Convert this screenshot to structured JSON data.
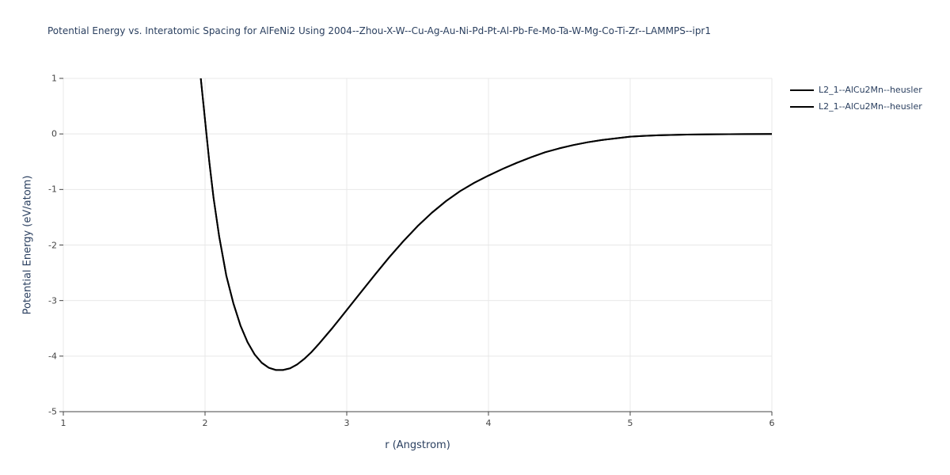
{
  "colors": {
    "line": "#000000",
    "grid": "#e8e8e8",
    "axis": "#444444",
    "text": "#2a3f5f",
    "tick_text": "#444444",
    "background": "#ffffff"
  },
  "chart_data": {
    "type": "line",
    "title": "Potential Energy vs. Interatomic Spacing for AlFeNi2 Using 2004--Zhou-X-W--Cu-Ag-Au-Ni-Pd-Pt-Al-Pb-Fe-Mo-Ta-W-Mg-Co-Ti-Zr--LAMMPS--ipr1",
    "xlabel": "r (Angstrom)",
    "ylabel": "Potential Energy (eV/atom)",
    "xlim": [
      1,
      6
    ],
    "ylim": [
      -5,
      1
    ],
    "xticks": [
      1,
      2,
      3,
      4,
      5,
      6
    ],
    "yticks": [
      -5,
      -4,
      -3,
      -2,
      -1,
      0,
      1
    ],
    "grid": true,
    "legend_position": "top-right-outside",
    "series": [
      {
        "name": "L2_1--AlCu2Mn--heusler",
        "color": "#000000",
        "x": [
          1.97,
          1.99,
          2.01,
          2.03,
          2.06,
          2.1,
          2.15,
          2.2,
          2.25,
          2.3,
          2.35,
          2.4,
          2.45,
          2.5,
          2.55,
          2.6,
          2.65,
          2.7,
          2.75,
          2.8,
          2.85,
          2.9,
          2.95,
          3.0,
          3.1,
          3.2,
          3.3,
          3.4,
          3.5,
          3.6,
          3.7,
          3.8,
          3.9,
          4.0,
          4.1,
          4.2,
          4.3,
          4.4,
          4.5,
          4.6,
          4.7,
          4.8,
          4.9,
          5.0,
          5.1,
          5.2,
          5.4,
          5.6,
          5.8,
          6.0
        ],
        "y": [
          1.0,
          0.5,
          0.0,
          -0.5,
          -1.15,
          -1.85,
          -2.55,
          -3.05,
          -3.45,
          -3.75,
          -3.97,
          -4.12,
          -4.21,
          -4.25,
          -4.25,
          -4.22,
          -4.15,
          -4.05,
          -3.93,
          -3.79,
          -3.64,
          -3.49,
          -3.33,
          -3.17,
          -2.85,
          -2.53,
          -2.22,
          -1.93,
          -1.66,
          -1.42,
          -1.21,
          -1.03,
          -0.88,
          -0.75,
          -0.63,
          -0.52,
          -0.42,
          -0.33,
          -0.26,
          -0.2,
          -0.15,
          -0.11,
          -0.08,
          -0.05,
          -0.035,
          -0.025,
          -0.012,
          -0.006,
          -0.003,
          -0.001
        ]
      },
      {
        "name": "L2_1--AlCu2Mn--heusler",
        "color": "#000000",
        "same_as": 0
      }
    ]
  }
}
